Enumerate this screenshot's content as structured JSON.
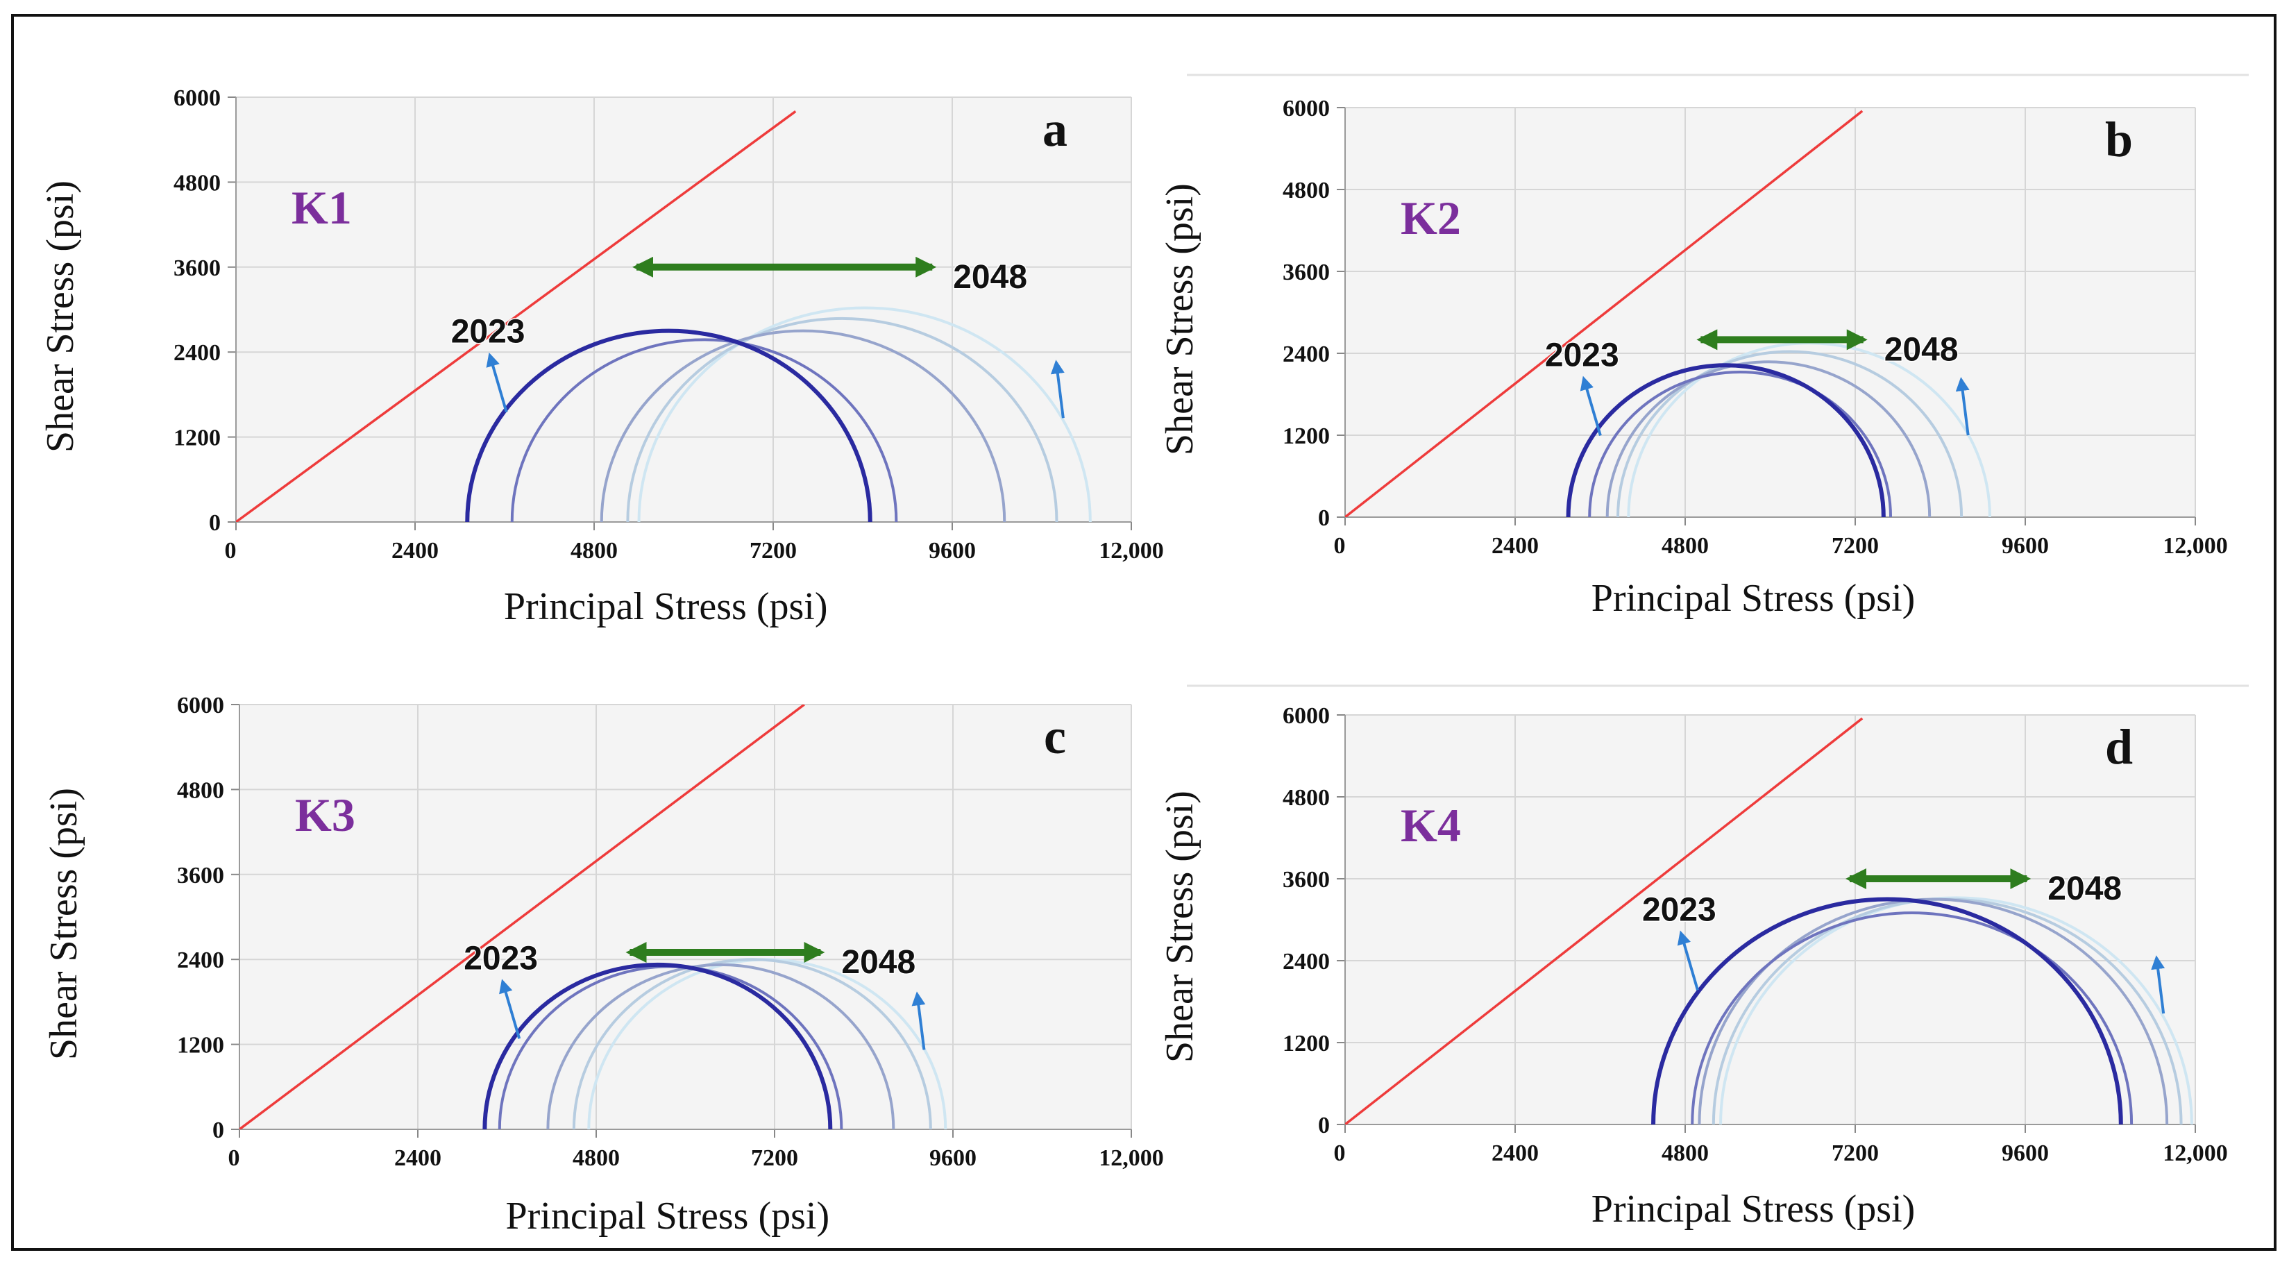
{
  "chart_data": [
    {
      "type": "line",
      "panel": "a",
      "well": "K1",
      "xlabel": "Principal Stress (psi)",
      "ylabel": "Shear Stress (psi)",
      "xlim": [
        0,
        12000
      ],
      "ylim": [
        0,
        6000
      ],
      "xticks": [
        "0",
        "2400",
        "4800",
        "7200",
        "9600",
        "12,000"
      ],
      "yticks": [
        "0",
        "1200",
        "2400",
        "3600",
        "4800",
        "6000"
      ],
      "failure_envelope": [
        [
          0,
          0
        ],
        [
          7500,
          5800
        ]
      ],
      "circles": [
        {
          "name": "2023",
          "sigma_min": 3100,
          "sigma_max": 8500
        },
        {
          "name": "circle 2",
          "sigma_min": 3700,
          "sigma_max": 8850
        },
        {
          "name": "circle 3",
          "sigma_min": 4900,
          "sigma_max": 10300
        },
        {
          "name": "circle 4",
          "sigma_min": 5250,
          "sigma_max": 11000
        },
        {
          "name": "2048",
          "sigma_min": 5400,
          "sigma_max": 11450
        }
      ],
      "start_year": "2023",
      "end_year": "2048",
      "shift_arrow_y": 3600
    },
    {
      "type": "line",
      "panel": "b",
      "well": "K2",
      "xlabel": "Principal Stress (psi)",
      "ylabel": "Shear Stress (psi)",
      "xlim": [
        0,
        12000
      ],
      "ylim": [
        0,
        6000
      ],
      "xticks": [
        "0",
        "2400",
        "4800",
        "7200",
        "9600",
        "12,000"
      ],
      "yticks": [
        "0",
        "1200",
        "2400",
        "3600",
        "4800",
        "6000"
      ],
      "failure_envelope": [
        [
          0,
          0
        ],
        [
          7300,
          5950
        ]
      ],
      "circles": [
        {
          "name": "2023",
          "sigma_min": 3150,
          "sigma_max": 7600
        },
        {
          "name": "circle 2",
          "sigma_min": 3450,
          "sigma_max": 7700
        },
        {
          "name": "circle 3",
          "sigma_min": 3700,
          "sigma_max": 8250
        },
        {
          "name": "circle 4",
          "sigma_min": 3850,
          "sigma_max": 8700
        },
        {
          "name": "2048",
          "sigma_min": 4000,
          "sigma_max": 9100
        }
      ],
      "start_year": "2023",
      "end_year": "2048",
      "shift_arrow_y": 2600
    },
    {
      "type": "line",
      "panel": "c",
      "well": "K3",
      "xlabel": "Principal Stress (psi)",
      "ylabel": "Shear Stress (psi)",
      "xlim": [
        0,
        12000
      ],
      "ylim": [
        0,
        6000
      ],
      "xticks": [
        "0",
        "2400",
        "4800",
        "7200",
        "9600",
        "12,000"
      ],
      "yticks": [
        "0",
        "1200",
        "2400",
        "3600",
        "4800",
        "6000"
      ],
      "failure_envelope": [
        [
          0,
          0
        ],
        [
          7600,
          6000
        ]
      ],
      "circles": [
        {
          "name": "2023",
          "sigma_min": 3300,
          "sigma_max": 7950
        },
        {
          "name": "circle 2",
          "sigma_min": 3500,
          "sigma_max": 8100
        },
        {
          "name": "circle 3",
          "sigma_min": 4150,
          "sigma_max": 8800
        },
        {
          "name": "circle 4",
          "sigma_min": 4500,
          "sigma_max": 9300
        },
        {
          "name": "2048",
          "sigma_min": 4700,
          "sigma_max": 9500
        }
      ],
      "start_year": "2023",
      "end_year": "2048",
      "shift_arrow_y": 2500
    },
    {
      "type": "line",
      "panel": "d",
      "well": "K4",
      "xlabel": "Principal Stress (psi)",
      "ylabel": "Shear Stress (psi)",
      "xlim": [
        0,
        12000
      ],
      "ylim": [
        0,
        6000
      ],
      "xticks": [
        "0",
        "2400",
        "4800",
        "7200",
        "9600",
        "12,000"
      ],
      "yticks": [
        "0",
        "1200",
        "2400",
        "3600",
        "4800",
        "6000"
      ],
      "failure_envelope": [
        [
          0,
          0
        ],
        [
          7300,
          5950
        ]
      ],
      "circles": [
        {
          "name": "2023",
          "sigma_min": 4350,
          "sigma_max": 10950
        },
        {
          "name": "circle 2",
          "sigma_min": 4900,
          "sigma_max": 11100
        },
        {
          "name": "circle 3",
          "sigma_min": 5000,
          "sigma_max": 11600
        },
        {
          "name": "circle 4",
          "sigma_min": 5200,
          "sigma_max": 11800
        },
        {
          "name": "2048",
          "sigma_min": 5300,
          "sigma_max": 11950
        }
      ],
      "start_year": "2023",
      "end_year": "2048",
      "shift_arrow_y": 3600
    }
  ],
  "colors": {
    "envelope": "#ee3b3b",
    "circle_shades": [
      "#2a2aa0",
      "#6e74be",
      "#96a4cc",
      "#b6cce0",
      "#cfe6f2"
    ],
    "shift_arrow": "#2e7d1e",
    "year_arrow": "#2f7fd4",
    "well_name": "#7b2e9c",
    "plot_bg": "#f4f4f4",
    "grid": "#d6d6d6"
  }
}
